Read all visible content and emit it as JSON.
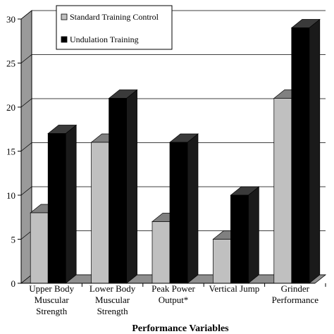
{
  "colors": {
    "control_face": "#c0c0c0",
    "control_top": "#808080",
    "control_side": "#8c8c8c",
    "undulation_face": "#000000",
    "undulation_top": "#3a3a3a",
    "undulation_side": "#1a1a1a",
    "back_wall": "#bdbdbd",
    "back_wall_dark": "#9a9a9a",
    "floor": "#8e8e8e",
    "grid": "#000000"
  },
  "chart_data": {
    "type": "bar",
    "title": "",
    "xlabel": "Performance Variables",
    "ylabel": "",
    "ylim": [
      0,
      30
    ],
    "yticks": [
      "0",
      "5",
      "10",
      "15",
      "20",
      "25",
      "30"
    ],
    "grid": true,
    "legend": "top-left",
    "categories": [
      [
        "Upper Body",
        "Muscular",
        "Strength"
      ],
      [
        "Lower Body",
        "Muscular",
        "Strength"
      ],
      [
        "Peak Power",
        "Output*"
      ],
      [
        "Vertical Jump"
      ],
      [
        "Grinder",
        "Performance"
      ]
    ],
    "series": [
      {
        "name": "Standard Training Control",
        "values": [
          8,
          16,
          7,
          5,
          21
        ]
      },
      {
        "name": "Undulation Training",
        "values": [
          17,
          21,
          16,
          10,
          29
        ]
      }
    ]
  }
}
